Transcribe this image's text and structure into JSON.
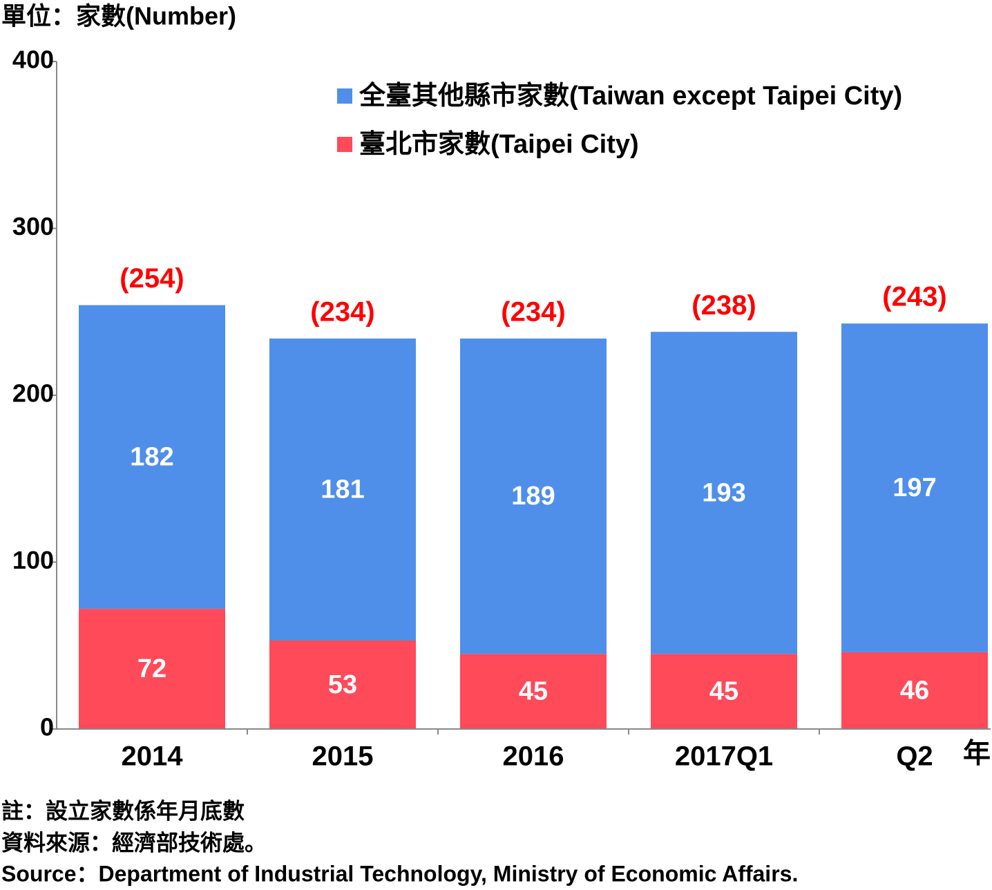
{
  "chart_data": {
    "type": "stacked_bar",
    "y_label": "單位：家數(Number)",
    "x_label": "年",
    "categories": [
      "2014",
      "2015",
      "2016",
      "2017Q1",
      "Q2"
    ],
    "series": [
      {
        "name": "臺北市家數(Taipei City)",
        "color": "#ff4a5a",
        "values": [
          72,
          53,
          45,
          45,
          46
        ]
      },
      {
        "name": "全臺其他縣市家數(Taiwan except Taipei City)",
        "color": "#4f8fea",
        "values": [
          182,
          181,
          189,
          193,
          197
        ]
      }
    ],
    "totals": {
      "color": "#ff0000",
      "values": [
        254,
        234,
        234,
        238,
        243
      ],
      "value_labels": [
        "(254)",
        "(234)",
        "(234)",
        "(238)",
        "(243)"
      ]
    },
    "ylim": [
      0,
      400
    ],
    "yticks": [
      0,
      100,
      200,
      300,
      400
    ],
    "notes": [
      "註：設立家數係年月底數",
      "資料來源：經濟部技術處。",
      "Source：Department of Industrial Technology, Ministry of Economic Affairs."
    ]
  }
}
